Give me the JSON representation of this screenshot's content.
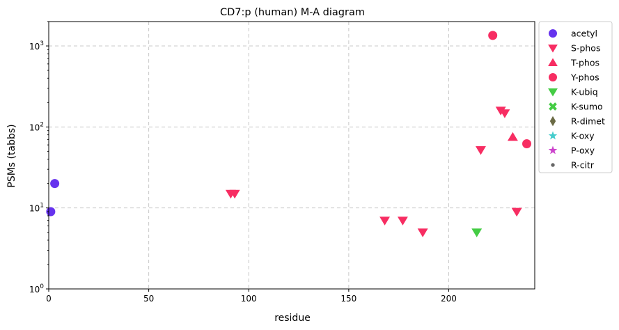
{
  "chart_data": {
    "type": "scatter",
    "title": "CD7:p (human) M-A diagram",
    "xlabel": "residue",
    "ylabel": "PSMs (tabbs)",
    "xlim": [
      0,
      243
    ],
    "ylim": [
      1,
      2000
    ],
    "yscale": "log",
    "grid": true,
    "legend_position": "outside-right",
    "x_ticks": [
      0,
      50,
      100,
      150,
      200
    ],
    "y_ticks": [
      {
        "value": 1,
        "base": "10",
        "exp": "0"
      },
      {
        "value": 10,
        "base": "10",
        "exp": "1"
      },
      {
        "value": 100,
        "base": "10",
        "exp": "2"
      },
      {
        "value": 1000,
        "base": "10",
        "exp": "3"
      }
    ],
    "series": [
      {
        "name": "acetyl",
        "marker": "circle",
        "color": "#6633ee",
        "points": [
          [
            1,
            9
          ],
          [
            3,
            20
          ]
        ]
      },
      {
        "name": "S-phos",
        "marker": "triangle-down",
        "color": "#f72d62",
        "points": [
          [
            91,
            15
          ],
          [
            93,
            15
          ],
          [
            168,
            7
          ],
          [
            177,
            7
          ],
          [
            187,
            5
          ],
          [
            216,
            52
          ],
          [
            226,
            160
          ],
          [
            228,
            148
          ],
          [
            234,
            9
          ]
        ]
      },
      {
        "name": "T-phos",
        "marker": "triangle-up",
        "color": "#f72d62",
        "points": [
          [
            232,
            75
          ]
        ]
      },
      {
        "name": "Y-phos",
        "marker": "circle",
        "color": "#f72d62",
        "points": [
          [
            222,
            1350
          ],
          [
            239,
            62
          ]
        ]
      },
      {
        "name": "K-ubiq",
        "marker": "triangle-down",
        "color": "#44cc44",
        "points": [
          [
            214,
            5
          ]
        ]
      },
      {
        "name": "K-sumo",
        "marker": "x",
        "color": "#44cc44",
        "points": []
      },
      {
        "name": "R-dimet",
        "marker": "diamond",
        "color": "#6b6b45",
        "points": []
      },
      {
        "name": "K-oxy",
        "marker": "star",
        "color": "#44cccc",
        "points": []
      },
      {
        "name": "P-oxy",
        "marker": "star",
        "color": "#cc44cc",
        "points": []
      },
      {
        "name": "R-citr",
        "marker": "small-dot",
        "color": "#666666",
        "points": []
      }
    ]
  }
}
